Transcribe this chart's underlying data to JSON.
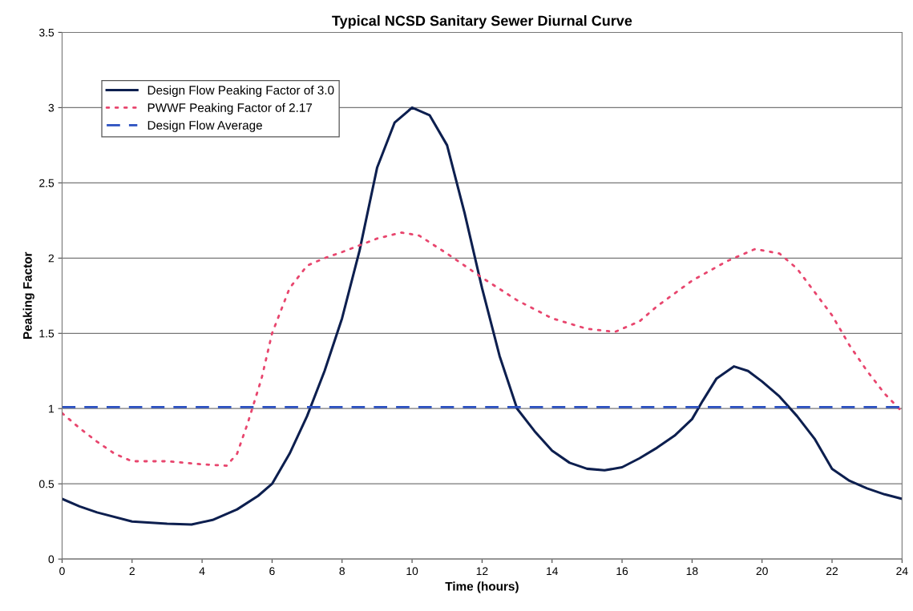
{
  "chart_data": {
    "type": "line",
    "title": "Typical NCSD Sanitary Sewer Diurnal Curve",
    "xlabel": "Time (hours)",
    "ylabel": "Peaking Factor",
    "xlim": [
      0,
      24
    ],
    "xticks": [
      0,
      2,
      4,
      6,
      8,
      10,
      12,
      14,
      16,
      18,
      20,
      22,
      24
    ],
    "ylim": [
      0,
      3.5
    ],
    "yticks": [
      0,
      0.5,
      1,
      1.5,
      2,
      2.5,
      3,
      3.5
    ],
    "grid": "y",
    "legend": "top left",
    "series": [
      {
        "name": "Design Flow Peaking Factor of 3.0",
        "color": "#0d1f4f",
        "line_style": "solid",
        "x": [
          0,
          0.5,
          1,
          2,
          3,
          3.7,
          4.3,
          5,
          5.6,
          6,
          6.5,
          7,
          7.5,
          8,
          8.5,
          9,
          9.5,
          10,
          10.5,
          11,
          11.5,
          12,
          12.5,
          13,
          13.5,
          14,
          14.5,
          15,
          15.5,
          16,
          16.5,
          17,
          17.5,
          18,
          18.3,
          18.7,
          19.2,
          19.6,
          20,
          20.5,
          21,
          21.5,
          22,
          22.5,
          23,
          23.5,
          24
        ],
        "values": [
          0.4,
          0.35,
          0.31,
          0.25,
          0.235,
          0.23,
          0.26,
          0.33,
          0.42,
          0.5,
          0.7,
          0.95,
          1.25,
          1.6,
          2.05,
          2.6,
          2.9,
          3.0,
          2.95,
          2.75,
          2.3,
          1.8,
          1.35,
          1.0,
          0.85,
          0.72,
          0.64,
          0.6,
          0.59,
          0.61,
          0.67,
          0.74,
          0.82,
          0.93,
          1.05,
          1.2,
          1.28,
          1.25,
          1.18,
          1.08,
          0.95,
          0.8,
          0.6,
          0.52,
          0.47,
          0.43,
          0.4
        ]
      },
      {
        "name": "PWWF Peaking Factor of 2.17",
        "color": "#e8466e",
        "line_style": "dotted",
        "x": [
          0,
          0.5,
          1,
          1.5,
          2,
          3,
          4,
          4.7,
          5,
          5.3,
          5.7,
          6,
          6.5,
          7,
          7.5,
          8,
          9,
          9.7,
          10.2,
          11,
          12,
          13,
          14,
          15,
          15.8,
          16.5,
          17,
          18,
          19,
          19.8,
          20.5,
          21,
          22,
          22.5,
          23,
          23.5,
          24
        ],
        "values": [
          0.97,
          0.87,
          0.78,
          0.7,
          0.65,
          0.65,
          0.63,
          0.62,
          0.7,
          0.9,
          1.2,
          1.5,
          1.8,
          1.95,
          2.0,
          2.04,
          2.13,
          2.17,
          2.15,
          2.03,
          1.87,
          1.72,
          1.6,
          1.53,
          1.51,
          1.58,
          1.68,
          1.85,
          1.98,
          2.06,
          2.03,
          1.93,
          1.62,
          1.42,
          1.25,
          1.1,
          0.98
        ]
      },
      {
        "name": "Design Flow Average",
        "color": "#2a4fc0",
        "line_style": "dashed",
        "x": [
          0,
          24
        ],
        "values": [
          1.01,
          1.01
        ]
      }
    ]
  }
}
